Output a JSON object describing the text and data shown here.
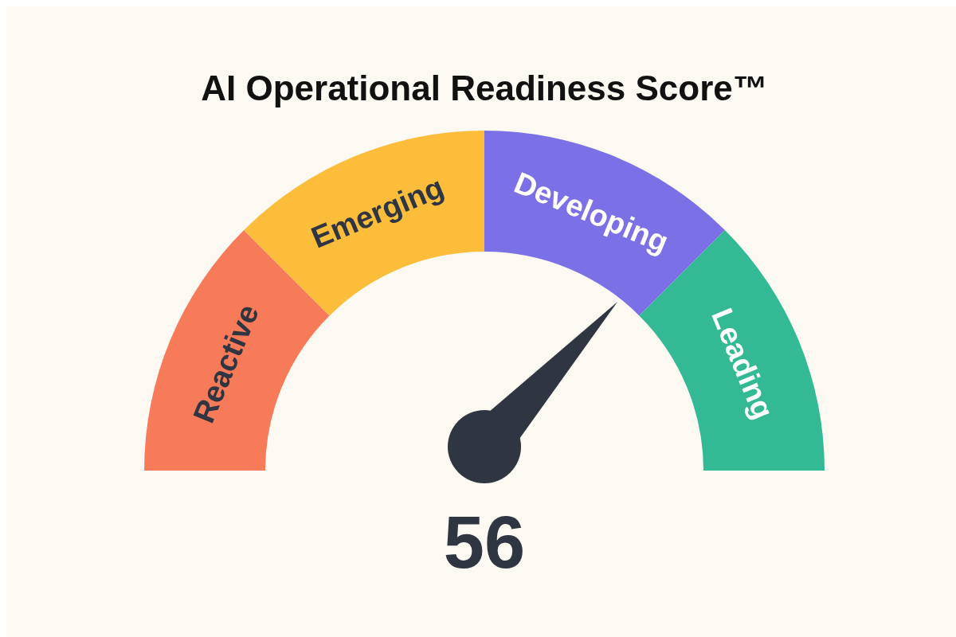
{
  "chart_data": {
    "type": "donut",
    "title": "AI Operational Readiness Score™",
    "categories": [
      "Reactive",
      "Emerging",
      "Developing",
      "Leading"
    ],
    "values": [
      25,
      25,
      25,
      25
    ],
    "colors": [
      "#f77b59",
      "#fbbd3a",
      "#7b70e6",
      "#33b993"
    ],
    "needle": "Developing",
    "annotations": [
      "56"
    ]
  }
}
